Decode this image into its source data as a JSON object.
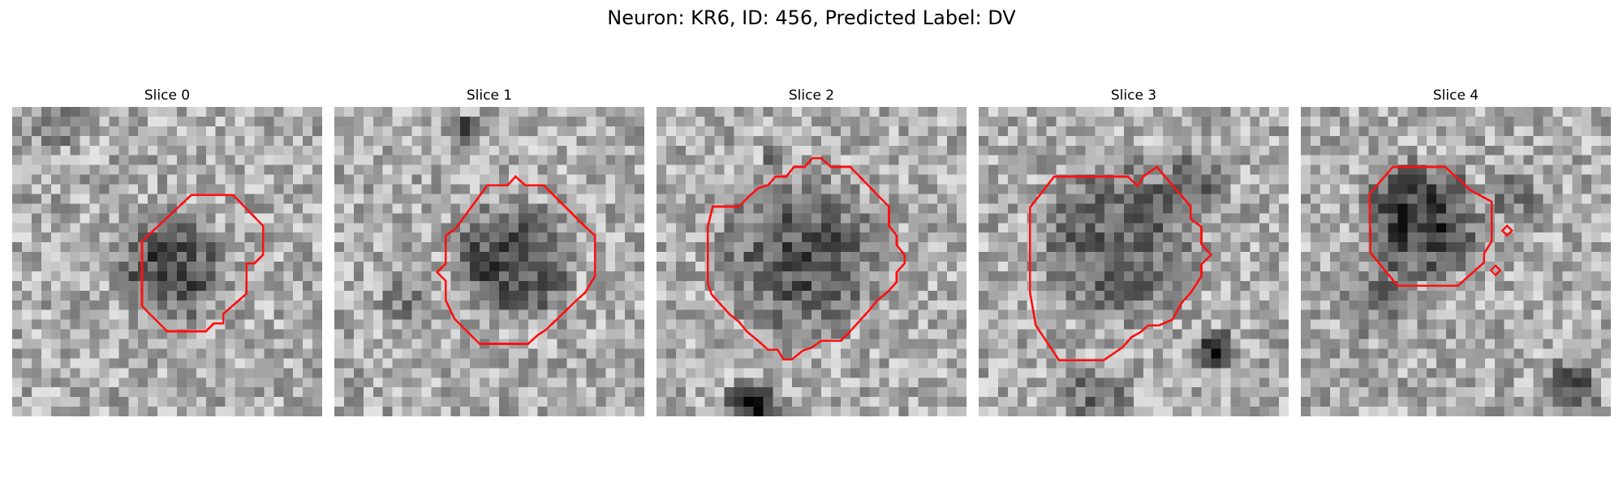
{
  "figure": {
    "title": "Neuron: KR6, ID: 456, Predicted Label: DV"
  },
  "colors": {
    "outline": "#ff1111",
    "background": "#ffffff"
  },
  "panels": [
    {
      "title": "Slice 0"
    },
    {
      "title": "Slice 1"
    },
    {
      "title": "Slice 2"
    },
    {
      "title": "Slice 3"
    },
    {
      "title": "Slice 4"
    }
  ]
}
